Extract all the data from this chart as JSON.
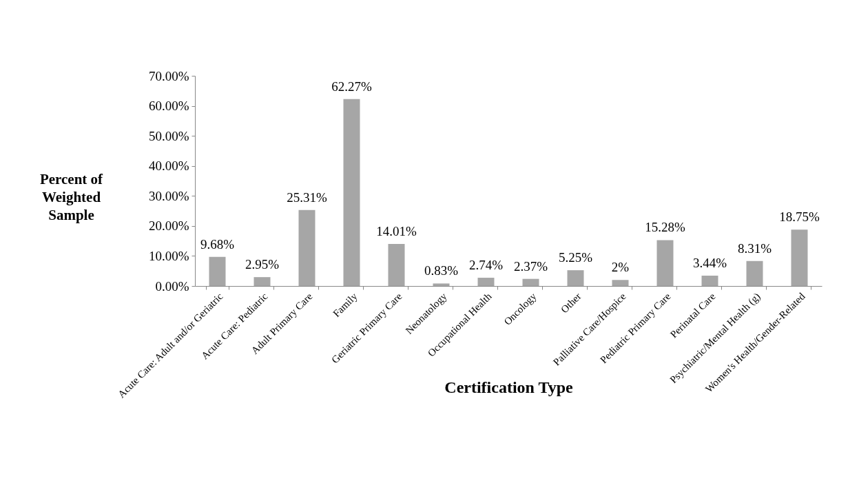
{
  "chart_data": {
    "type": "bar",
    "xlabel": "Certification Type",
    "ylabel": "Percent of Weighted Sample",
    "categories": [
      "Acute Care: Adult and/or Geriatric",
      "Acute Care: Pediatric",
      "Adult Primary Care",
      "Family",
      "Geriatric Primary Care",
      "Neonatology",
      "Occupational Health",
      "Oncology",
      "Other",
      "Palliative Care/Hospice",
      "Pediatric Primary Care",
      "Perinatal Care",
      "Psychiatric/Mental Health  (g)",
      "Women's Health/Gender-Related"
    ],
    "values": [
      9.68,
      2.95,
      25.31,
      62.27,
      14.01,
      0.83,
      2.74,
      2.37,
      5.25,
      2,
      15.28,
      3.44,
      8.31,
      18.75
    ],
    "value_labels": [
      "9.68%",
      "2.95%",
      "25.31%",
      "62.27%",
      "14.01%",
      "0.83%",
      "2.74%",
      "2.37%",
      "5.25%",
      "2%",
      "15.28%",
      "3.44%",
      "8.31%",
      "18.75%"
    ],
    "color": "#a6a6a6",
    "ylim": [
      0,
      70
    ],
    "yticks": [
      {
        "value": 0,
        "label": "0.00%"
      },
      {
        "value": 10,
        "label": "10.00%"
      },
      {
        "value": 20,
        "label": "20.00%"
      },
      {
        "value": 30,
        "label": "30.00%"
      },
      {
        "value": 40,
        "label": "40.00%"
      },
      {
        "value": 50,
        "label": "50.00%"
      },
      {
        "value": 60,
        "label": "60.00%"
      },
      {
        "value": 70,
        "label": "70.00%"
      }
    ],
    "grid": false
  }
}
